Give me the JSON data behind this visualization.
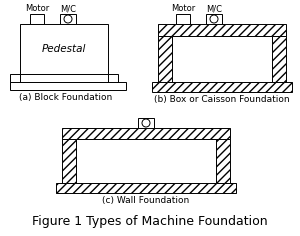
{
  "title": "Figure 1 Types of Machine Foundation",
  "label_a": "(a) Block Foundation",
  "label_b": "(b) Box or Caisson Foundation",
  "label_c": "(c) Wall Foundation",
  "hatch_pattern": "////",
  "bg_color": "#ffffff",
  "line_color": "#000000",
  "font_size_label": 6.5,
  "font_size_title": 9,
  "font_size_annot": 6.0
}
